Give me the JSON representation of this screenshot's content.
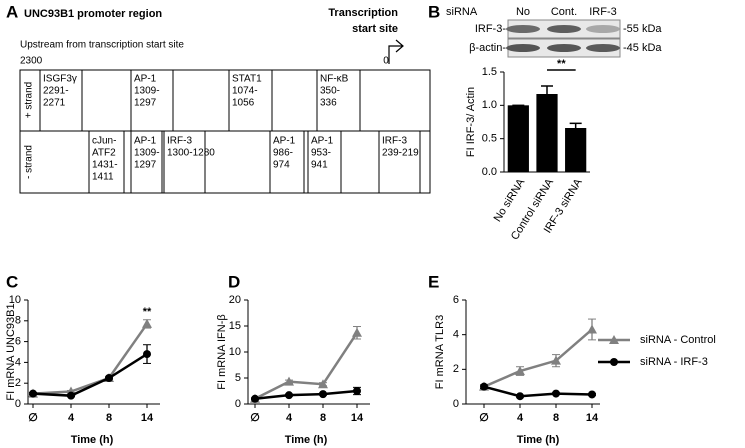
{
  "promoter": {
    "panel": "A",
    "title": "UNC93B1 promoter region",
    "tss_label": [
      "Transcription",
      "start site"
    ],
    "upstream_label": "Upstream from transcription start site",
    "start": "2300",
    "end": "0",
    "plus_strand": "+ strand",
    "minus_strand": "- strand",
    "plus_boxes": [
      [
        "ISGF3γ",
        "2291-",
        "2271"
      ],
      [
        "AP-1",
        "1309-",
        "1297"
      ],
      [
        "STAT1",
        "1074-",
        "1056"
      ],
      [
        "NF-κB",
        "350-",
        "336"
      ]
    ],
    "minus_boxes": [
      [
        "cJun-",
        "ATF2",
        "1431-",
        "1411"
      ],
      [
        "AP-1",
        "1309-",
        "1297"
      ],
      [
        "IRF-3",
        "1300-1280"
      ],
      [
        "AP-1",
        "986-",
        "974"
      ],
      [
        "AP-1",
        "953-",
        "941"
      ],
      [
        "IRF-3",
        "239-219"
      ]
    ]
  },
  "blot": {
    "header": "siRNA",
    "lanes": [
      "No",
      "Cont.",
      "IRF-3"
    ],
    "rows": [
      "IRF-3-",
      "β-actin-"
    ],
    "sizes": [
      "-55 kDa",
      "-45 kDa"
    ]
  },
  "chart_data": [
    {
      "type": "bar",
      "panel": "B",
      "categories": [
        "No siRNA",
        "Control siRNA",
        "IRF-3 siRNA"
      ],
      "values": [
        1.0,
        1.17,
        0.66
      ],
      "errors": [
        0,
        0.12,
        0.07
      ],
      "color": "#000000",
      "ylabel": "FI IRF-3/ Actin",
      "ylim": [
        0,
        1.5
      ],
      "yticks": [
        {
          "value": 0,
          "label": "0.0"
        },
        {
          "value": 0.5,
          "label": "0.5"
        },
        {
          "value": 1.0,
          "label": "1.0"
        },
        {
          "value": 1.5,
          "label": "1.5"
        }
      ],
      "annotation": "**"
    },
    {
      "type": "line",
      "panel": "C",
      "categories": [
        "∅",
        "4",
        "8",
        "14"
      ],
      "ylabel": "FI mRNA UNC93B1",
      "xlabel": "Time (h)",
      "ylim": [
        0,
        10
      ],
      "yticks": [
        0,
        2,
        4,
        6,
        8,
        10
      ],
      "annotation": "**",
      "series": [
        {
          "color": "#808080",
          "marker": "triangle",
          "values": [
            1.0,
            1.2,
            2.5,
            7.7
          ],
          "errors": [
            0.1,
            0.1,
            0.1,
            0.4
          ]
        },
        {
          "color": "#000000",
          "marker": "circle",
          "values": [
            1.0,
            0.8,
            2.5,
            4.8
          ],
          "errors": [
            0.1,
            0.1,
            0.1,
            0.9
          ]
        }
      ]
    },
    {
      "type": "line",
      "panel": "D",
      "categories": [
        "∅",
        "4",
        "8",
        "14"
      ],
      "ylabel": "FI mRNA IFN-β",
      "xlabel": "Time (h)",
      "ylim": [
        0,
        20
      ],
      "yticks": [
        0,
        5,
        10,
        15,
        20
      ],
      "series": [
        {
          "color": "#808080",
          "marker": "triangle",
          "values": [
            1.0,
            4.3,
            3.8,
            13.7
          ],
          "errors": [
            0.2,
            0.3,
            0.3,
            1.2
          ]
        },
        {
          "color": "#000000",
          "marker": "circle",
          "values": [
            1.0,
            1.7,
            1.9,
            2.5
          ],
          "errors": [
            0.1,
            0.2,
            0.2,
            0.7
          ]
        }
      ]
    },
    {
      "type": "line",
      "panel": "E",
      "categories": [
        "∅",
        "4",
        "8",
        "14"
      ],
      "ylabel": "FI mRNA TLR3",
      "xlabel": "Time (h)",
      "ylim": [
        0,
        6
      ],
      "yticks": [
        0,
        2,
        4,
        6
      ],
      "legend": "right",
      "series": [
        {
          "name": "siRNA - Control",
          "color": "#808080",
          "marker": "triangle",
          "values": [
            1.0,
            1.9,
            2.5,
            4.3
          ],
          "errors": [
            0.1,
            0.25,
            0.35,
            0.6
          ]
        },
        {
          "name": "siRNA - IRF-3",
          "color": "#000000",
          "marker": "circle",
          "values": [
            1.0,
            0.45,
            0.6,
            0.55
          ],
          "errors": [
            0.1,
            0.05,
            0.05,
            0.05
          ]
        }
      ]
    }
  ]
}
